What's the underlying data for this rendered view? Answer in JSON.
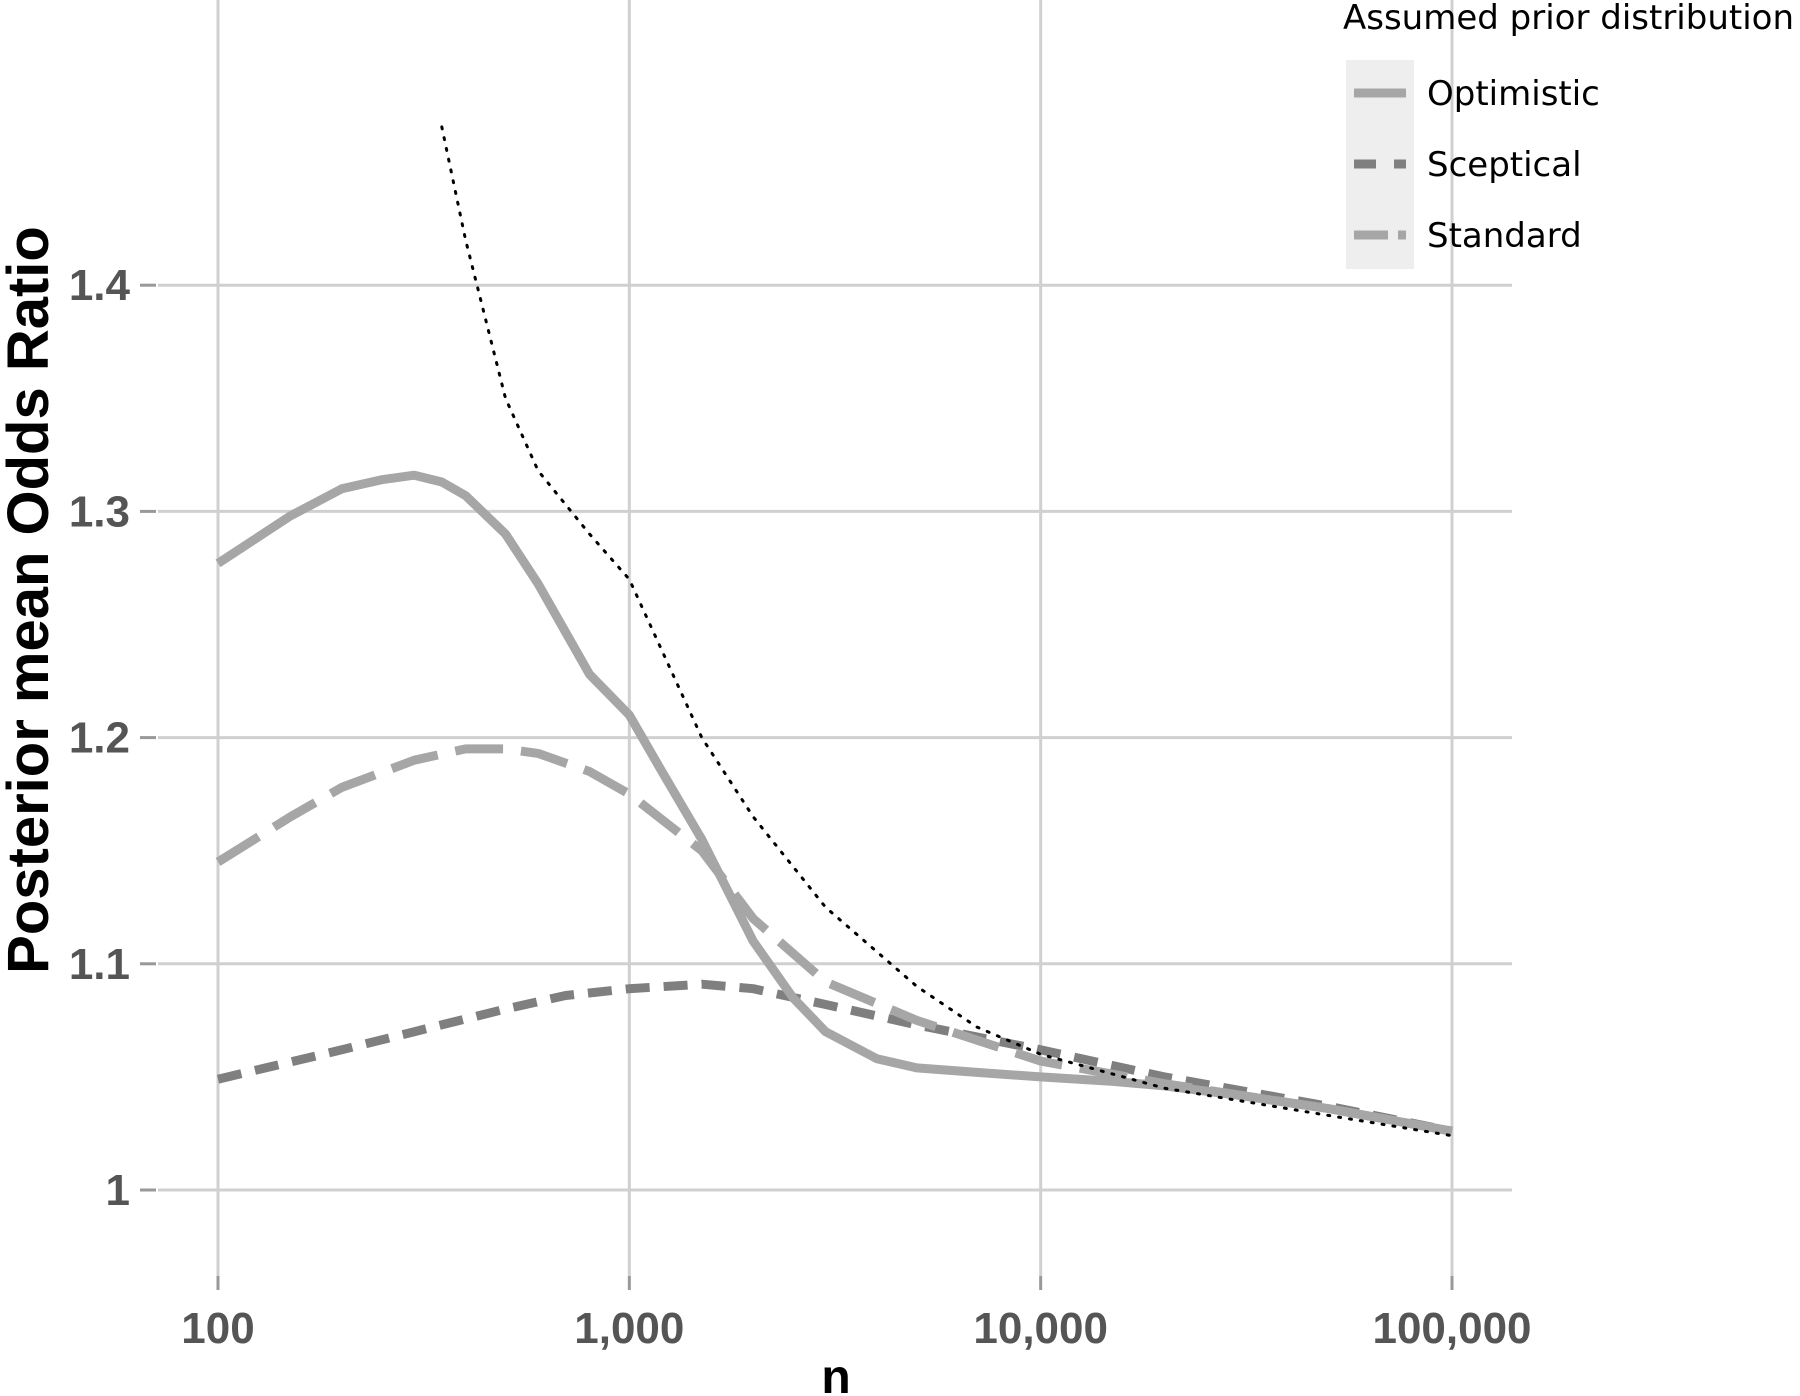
{
  "chart_data": {
    "type": "line",
    "xlabel": "n",
    "ylabel": "Posterior mean Odds Ratio",
    "x_scale": "log10",
    "xlim": [
      100,
      100000
    ],
    "ylim": [
      0.96,
      1.51
    ],
    "x_ticks": [
      {
        "value": 100,
        "label": "100"
      },
      {
        "value": 1000,
        "label": "1,000"
      },
      {
        "value": 10000,
        "label": "10,000"
      },
      {
        "value": 100000,
        "label": "100,000"
      }
    ],
    "y_ticks": [
      {
        "value": 1.0,
        "label": "1"
      },
      {
        "value": 1.1,
        "label": "1.1"
      },
      {
        "value": 1.2,
        "label": "1.2"
      },
      {
        "value": 1.3,
        "label": "1.3"
      },
      {
        "value": 1.4,
        "label": "1.4"
      }
    ],
    "grid": true,
    "legend": {
      "title": "Assumed prior distribution",
      "position": "top-right"
    },
    "series": [
      {
        "name": "Optimistic",
        "style": "solid",
        "color": "#a6a6a6",
        "x": [
          100,
          150,
          200,
          250,
          300,
          350,
          400,
          500,
          600,
          800,
          1000,
          1200,
          1500,
          2000,
          2500,
          3000,
          4000,
          5000,
          7000,
          10000,
          15000,
          20000,
          30000,
          50000,
          100000
        ],
        "y": [
          1.277,
          1.298,
          1.31,
          1.314,
          1.316,
          1.313,
          1.307,
          1.29,
          1.268,
          1.228,
          1.21,
          1.185,
          1.155,
          1.11,
          1.085,
          1.07,
          1.058,
          1.054,
          1.052,
          1.05,
          1.048,
          1.046,
          1.042,
          1.036,
          1.026
        ]
      },
      {
        "name": "Sceptical",
        "style": "dashed",
        "color": "#7f7f7f",
        "x": [
          100,
          200,
          300,
          500,
          700,
          1000,
          1500,
          2000,
          3000,
          5000,
          10000,
          20000,
          50000,
          100000
        ],
        "y": [
          1.049,
          1.062,
          1.07,
          1.08,
          1.086,
          1.089,
          1.091,
          1.089,
          1.082,
          1.073,
          1.062,
          1.05,
          1.037,
          1.026
        ]
      },
      {
        "name": "Standard",
        "style": "longdash",
        "color": "#a6a6a6",
        "x": [
          100,
          150,
          200,
          300,
          400,
          500,
          600,
          800,
          1000,
          1500,
          2000,
          3000,
          5000,
          10000,
          20000,
          50000,
          100000
        ],
        "y": [
          1.145,
          1.165,
          1.178,
          1.19,
          1.195,
          1.195,
          1.193,
          1.185,
          1.175,
          1.15,
          1.12,
          1.092,
          1.075,
          1.057,
          1.047,
          1.036,
          1.026
        ]
      }
    ],
    "reference_curve": {
      "style": "dotted",
      "color": "#000000",
      "x": [
        350,
        400,
        500,
        600,
        800,
        1000,
        1500,
        2000,
        3000,
        5000,
        7000,
        10000,
        20000,
        50000,
        100000
      ],
      "y": [
        1.47,
        1.42,
        1.35,
        1.318,
        1.29,
        1.27,
        1.2,
        1.165,
        1.125,
        1.09,
        1.072,
        1.06,
        1.045,
        1.033,
        1.024
      ]
    }
  }
}
